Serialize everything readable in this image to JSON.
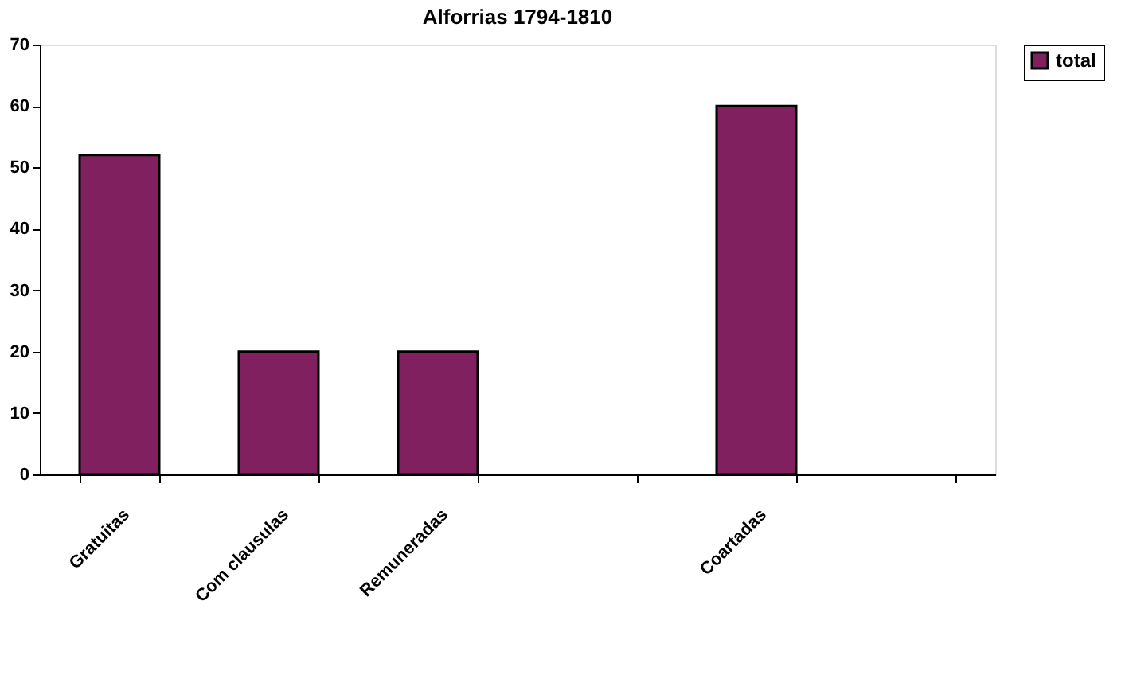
{
  "chart_data": {
    "type": "bar",
    "title": "Alforrias 1794-1810",
    "categories": [
      "Gratuitas",
      "Com clausulas",
      "Remuneradas",
      null,
      "Coartadas",
      null
    ],
    "series": [
      {
        "name": "total",
        "color": "#80205f",
        "values": [
          52,
          20,
          20,
          null,
          60,
          null
        ]
      }
    ],
    "ylim": [
      0,
      70
    ],
    "yticks": [
      0,
      10,
      20,
      30,
      40,
      50,
      60,
      70
    ],
    "grid": false,
    "legend": "right"
  }
}
